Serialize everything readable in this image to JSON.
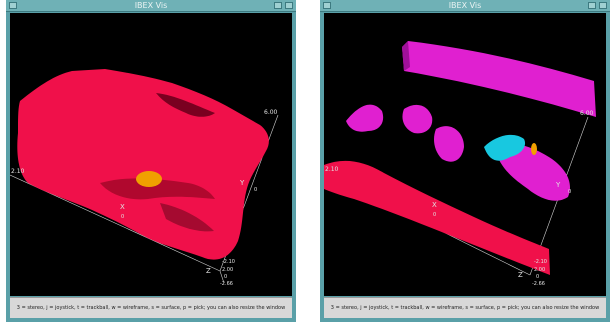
{
  "windows": [
    {
      "title": "IBEX Vis",
      "status": "3 = stereo, j = joystick, t = trackball, w = wireframe, s = surface, p = pick; you can also resize the window",
      "axis_labels": {
        "x": "X",
        "y": "Y",
        "z": "Z"
      },
      "tick_labels": {
        "right_top": "6.00",
        "left": "2.10",
        "x_zero": "0",
        "y_zero": "0",
        "z_top": "-2.10",
        "z_mid": "2.00",
        "z_zero": "0",
        "z_bottom": "-2.66"
      }
    },
    {
      "title": "IBEX Vis",
      "status": "3 = stereo, j = joystick, t = trackball, w = wireframe, s = surface, p = pick; you can also resize the window",
      "axis_labels": {
        "x": "X",
        "y": "Y",
        "z": "Z"
      },
      "tick_labels": {
        "right_top": "6.00",
        "left": "2.10",
        "x_zero": "0",
        "y_zero": "0",
        "z_top": "-2.10",
        "z_mid": "2.00",
        "z_zero": "0",
        "z_bottom": "-2.66"
      }
    }
  ],
  "colors": {
    "surface_red": "#f0104a",
    "surface_magenta": "#e020d0",
    "blob_orange": "#f0a000",
    "blob_cyan": "#18c8e0",
    "viewport_bg": "#000000"
  }
}
